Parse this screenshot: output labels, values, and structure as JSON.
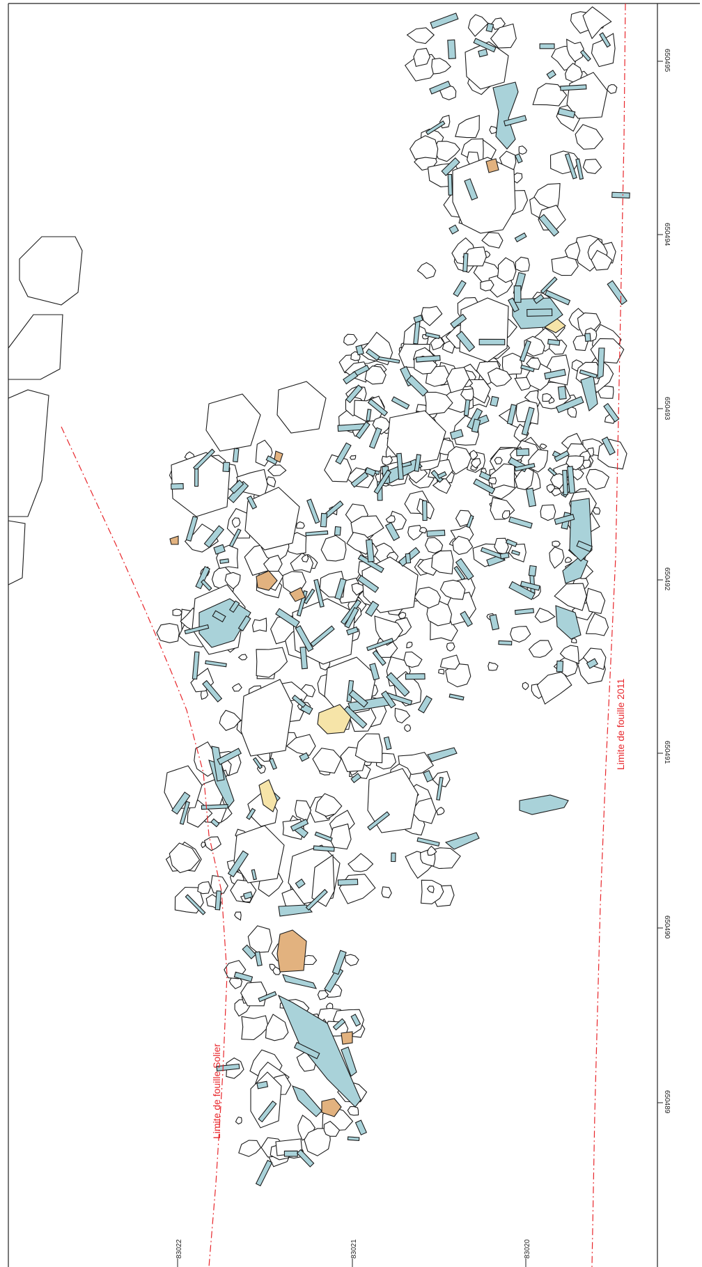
{
  "map": {
    "coords_right": [
      "650495",
      "650494",
      "650493",
      "650492",
      "650491",
      "650490",
      "650489"
    ],
    "coords_bottom": [
      "83022",
      "83021",
      "83020"
    ],
    "limit_labels": {
      "solier": "Limite de fouille Solier",
      "fouille_2011": "Limite de fouille 2011"
    },
    "legend_colors": {
      "stone": "#ffffff",
      "bone": "#a9d2d9",
      "ochre": "#e2b27f",
      "ivory": "#f6e4a8",
      "limit": "#e8262b"
    }
  }
}
